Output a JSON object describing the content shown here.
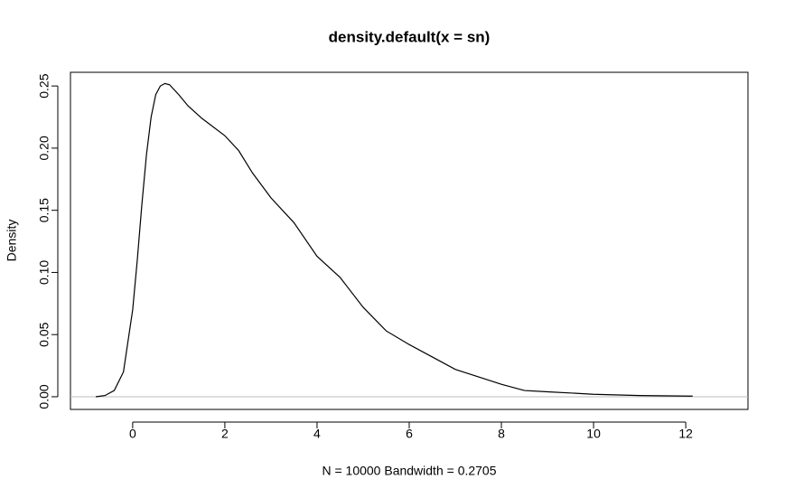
{
  "chart_data": {
    "type": "line",
    "title": "density.default(x = sn)",
    "x_label": "N = 10000   Bandwidth = 0.2705",
    "y_label": "Density",
    "x": [
      -0.8,
      -0.6,
      -0.4,
      -0.2,
      0,
      0.1,
      0.2,
      0.3,
      0.4,
      0.5,
      0.6,
      0.7,
      0.8,
      1.0,
      1.2,
      1.5,
      2.0,
      2.3,
      2.6,
      3.0,
      3.5,
      4.0,
      4.5,
      5.0,
      5.5,
      6.0,
      6.5,
      7.0,
      7.5,
      8.0,
      8.5,
      9.0,
      10.0,
      11.0,
      12.15
    ],
    "series": [
      {
        "color": "#000000",
        "values": [
          0.0,
          0.001,
          0.005,
          0.02,
          0.07,
          0.11,
          0.155,
          0.195,
          0.225,
          0.243,
          0.25,
          0.252,
          0.251,
          0.243,
          0.234,
          0.224,
          0.21,
          0.198,
          0.18,
          0.16,
          0.14,
          0.113,
          0.096,
          0.072,
          0.053,
          0.042,
          0.032,
          0.022,
          0.016,
          0.01,
          0.005,
          0.004,
          0.002,
          0.001,
          0.0005
        ]
      }
    ],
    "xlim": [
      -1.35,
      13.35
    ],
    "ylim": [
      -0.0102,
      0.261
    ],
    "xticks": [
      0,
      2,
      4,
      6,
      8,
      10,
      12
    ],
    "yticks": [
      {
        "value": 0,
        "label": "0.00"
      },
      0.05,
      {
        "value": 0.1,
        "label": "0.10"
      },
      0.15,
      {
        "value": 0.2,
        "label": "0.20"
      },
      0.25
    ],
    "zero_line": true
  }
}
